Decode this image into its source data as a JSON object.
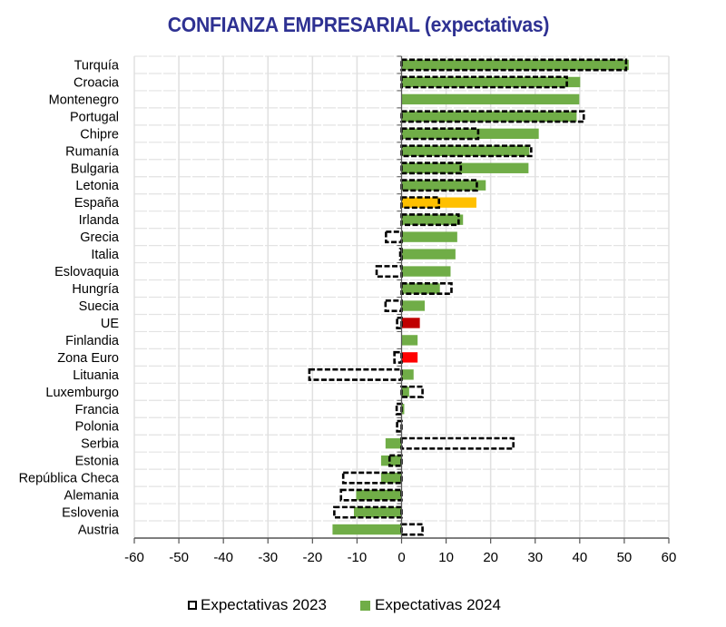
{
  "chart_data": {
    "type": "bar",
    "orientation": "horizontal",
    "title": "CONFIANZA EMPRESARIAL (expectativas)",
    "xlabel": "",
    "ylabel": "",
    "xlim": [
      -60,
      60
    ],
    "xticks": [
      -60,
      -50,
      -40,
      -30,
      -20,
      -10,
      0,
      10,
      20,
      30,
      40,
      50,
      60
    ],
    "grid": true,
    "legend_position": "bottom",
    "categories": [
      "Turquía",
      "Croacia",
      "Montenegro",
      "Portugal",
      "Chipre",
      "Rumanía",
      "Bulgaria",
      "Letonia",
      "España",
      "Irlanda",
      "Grecia",
      "Italia",
      "Eslovaquia",
      "Hungría",
      "Suecia",
      "UE",
      "Finlandia",
      "Zona Euro",
      "Lituania",
      "Luxemburgo",
      "Francia",
      "Polonia",
      "Serbia",
      "Estonia",
      "República Checa",
      "Alemania",
      "Eslovenia",
      "Austria"
    ],
    "series": [
      {
        "name": "Expectativas 2023",
        "style": "dashed-outline",
        "color": "#000000",
        "values": [
          50.4,
          37.1,
          null,
          40.9,
          17.2,
          29.1,
          13.3,
          16.9,
          8.4,
          12.8,
          -3.5,
          -0.3,
          -5.6,
          11.2,
          -3.6,
          -1.0,
          null,
          -1.6,
          -20.7,
          4.7,
          -1.1,
          -1.0,
          25.1,
          -2.7,
          -13.1,
          -13.6,
          -15.1,
          4.7
        ]
      },
      {
        "name": "Expectativas 2024",
        "style": "filled",
        "color": "#70ad47",
        "values": [
          51.0,
          40.1,
          39.9,
          39.3,
          30.8,
          28.7,
          28.5,
          18.9,
          16.8,
          13.8,
          12.5,
          12.1,
          11.0,
          8.6,
          5.2,
          4.1,
          3.6,
          3.6,
          2.7,
          1.7,
          0.6,
          0.0,
          -3.6,
          -4.6,
          -4.6,
          -10.2,
          -10.7,
          -15.5
        ]
      }
    ],
    "highlight_colors": {
      "España": "#ffc000",
      "UE": "#c00000",
      "Zona Euro": "#ff0000"
    }
  },
  "legend": {
    "items": [
      {
        "label": "Expectativas 2023"
      },
      {
        "label": "Expectativas 2024",
        "color": "#70ad47"
      }
    ]
  }
}
